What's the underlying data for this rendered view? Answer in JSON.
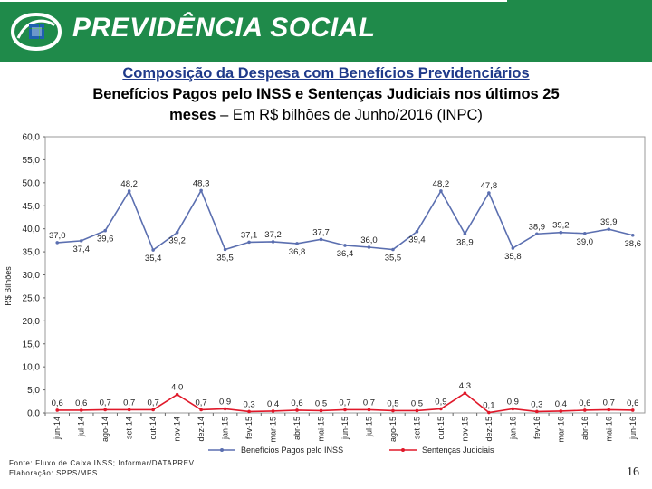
{
  "header": {
    "brand": "PREVIDÊNCIA SOCIAL",
    "brand_color": "#1f8a4a"
  },
  "title": {
    "line1": "Composição da Despesa com Benefícios Previdenciários",
    "line2": "Benefícios Pagos pelo INSS e Sentenças Judiciais nos últimos 25",
    "line3_bold": "meses",
    "line3_rest": " – Em R$ bilhões de Junho/2016 (INPC)"
  },
  "chart_data": {
    "type": "line",
    "title": "",
    "xlabel": "",
    "ylabel": "R$ Bilhões",
    "ylim": [
      0,
      60
    ],
    "yticks": [
      "0,0",
      "5,0",
      "10,0",
      "15,0",
      "20,0",
      "25,0",
      "30,0",
      "35,0",
      "40,0",
      "45,0",
      "50,0",
      "55,0",
      "60,0"
    ],
    "categories": [
      "jun-14",
      "jul-14",
      "ago-14",
      "set-14",
      "out-14",
      "nov-14",
      "dez-14",
      "jan-15",
      "fev-15",
      "mar-15",
      "abr-15",
      "mai-15",
      "jun-15",
      "jul-15",
      "ago-15",
      "set-15",
      "out-15",
      "nov-15",
      "dez-15",
      "jan-16",
      "fev-16",
      "mar-16",
      "abr-16",
      "mai-16",
      "jun-16"
    ],
    "series": [
      {
        "name": "Benefícios Pagos pelo INSS",
        "color": "#5b6fb0",
        "values": [
          37.0,
          37.4,
          39.6,
          48.2,
          35.4,
          39.2,
          48.3,
          35.5,
          37.1,
          37.2,
          36.8,
          37.7,
          36.4,
          36.0,
          35.5,
          39.4,
          48.2,
          38.9,
          47.8,
          35.8,
          38.9,
          39.2,
          39.0,
          39.9,
          38.6
        ],
        "labels": [
          "37,0",
          "37,4",
          "39,6",
          "48,2",
          "35,4",
          "39,2",
          "48,3",
          "35,5",
          "37,1",
          "37,2",
          "36,8",
          "37,7",
          "36,4",
          "36,0",
          "35,5",
          "39,4",
          "48,2",
          "38,9",
          "47,8",
          "35,8",
          "38,9",
          "39,2",
          "39,0",
          "39,9",
          "38,6"
        ]
      },
      {
        "name": "Sentenças Judiciais",
        "color": "#e0192a",
        "values": [
          0.6,
          0.6,
          0.7,
          0.7,
          0.7,
          4.0,
          0.7,
          0.9,
          0.3,
          0.4,
          0.6,
          0.5,
          0.7,
          0.7,
          0.5,
          0.5,
          0.9,
          4.3,
          0.1,
          0.9,
          0.3,
          0.4,
          0.6,
          0.7,
          0.6
        ],
        "labels": [
          "0,6",
          "0,6",
          "0,7",
          "0,7",
          "0,7",
          "4,0",
          "0,7",
          "0,9",
          "0,3",
          "0,4",
          "0,6",
          "0,5",
          "0,7",
          "0,7",
          "0,5",
          "0,5",
          "0,9",
          "4,3",
          "0,1",
          "0,9",
          "0,3",
          "0,4",
          "0,6",
          "0,7",
          "0,6"
        ]
      }
    ],
    "legend": "bottom"
  },
  "footer": {
    "source": "Fonte: Fluxo de Caixa INSS; Informar/DATAPREV.",
    "elaboration": "Elaboração: SPPS/MPS."
  },
  "page_number": "16"
}
